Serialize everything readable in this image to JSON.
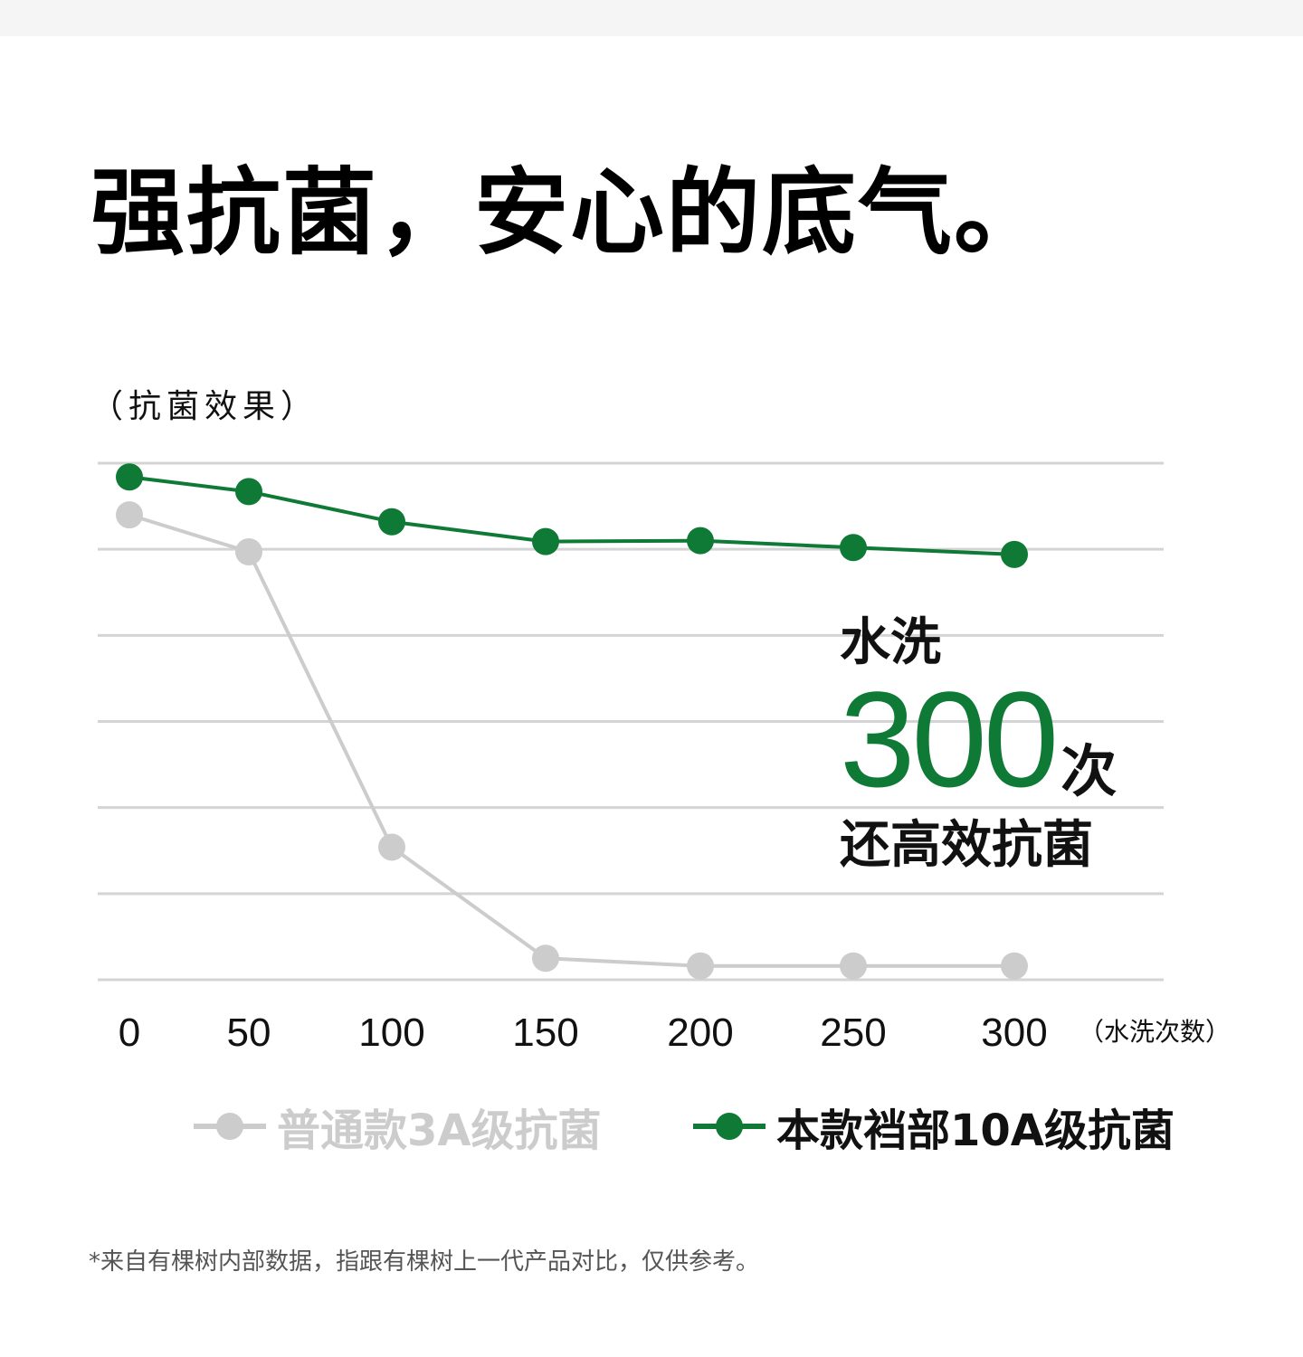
{
  "page": {
    "title": "强抗菌，安心的底气。",
    "footnote": "*来自有棵树内部数据，指跟有棵树上一代产品对比，仅供参考。"
  },
  "callout": {
    "line1": "水洗",
    "number": "300",
    "unit": "次",
    "line3": "还高效抗菌"
  },
  "chart_data": {
    "type": "line",
    "title": "",
    "ylabel": "（抗菌效果）",
    "xlabel": "（水洗次数）",
    "x": [
      0,
      50,
      100,
      150,
      200,
      250,
      300
    ],
    "x_tick_labels": [
      "0",
      "50",
      "100",
      "150",
      "200",
      "250",
      "300"
    ],
    "ylim": [
      0,
      6
    ],
    "grid": true,
    "gridline_count": 7,
    "legend_position": "bottom",
    "colors": {
      "green": "#0f7a35",
      "gray": "#cccccc",
      "gridline": "#d4d4d4"
    },
    "series": [
      {
        "name": "普通款3A级抗菌",
        "color": "#cccccc",
        "values": [
          5.4,
          4.97,
          1.54,
          0.25,
          0.16,
          0.16,
          0.16
        ]
      },
      {
        "name": "本款裆部10A级抗菌",
        "color": "#0f7a35",
        "values": [
          5.84,
          5.67,
          5.32,
          5.09,
          5.1,
          5.02,
          4.94
        ]
      }
    ]
  }
}
